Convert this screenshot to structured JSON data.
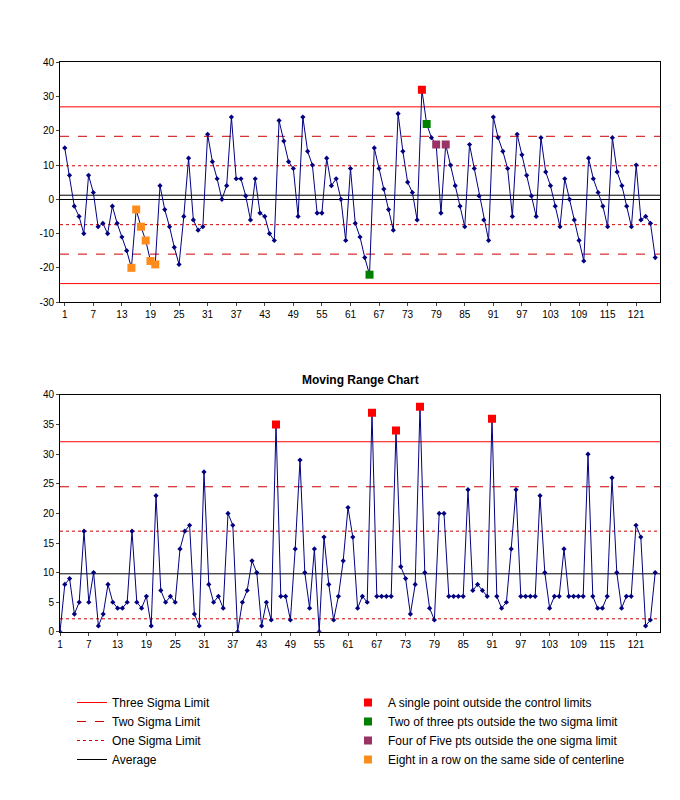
{
  "chart_data": [
    {
      "type": "line",
      "legend": "bottom",
      "grid": false,
      "xlim": [
        0,
        126
      ],
      "xticks": [
        1,
        7,
        13,
        19,
        25,
        31,
        37,
        43,
        49,
        55,
        61,
        67,
        73,
        79,
        85,
        91,
        97,
        103,
        109,
        115,
        121
      ],
      "ylim": [
        -30,
        40
      ],
      "yticks": [
        -30,
        -20,
        -10,
        0,
        10,
        20,
        30,
        40
      ],
      "reference_lines": [
        {
          "name": "Three Sigma Limit",
          "color": "#ff0000",
          "line_style": "solid",
          "values": [
            27.0,
            -24.6
          ]
        },
        {
          "name": "Two Sigma Limit",
          "color": "#cc0000",
          "line_style": "dashed",
          "values": [
            18.4,
            -16.0
          ]
        },
        {
          "name": "One Sigma Limit",
          "color": "#cc0000",
          "line_style": "dotted",
          "values": [
            9.8,
            -7.4
          ]
        },
        {
          "name": "Average",
          "color": "#000000",
          "line_style": "solid",
          "values": [
            1.2
          ]
        }
      ],
      "series": [
        {
          "type": "line",
          "color": "#000080",
          "marker": "diamond",
          "x": [
            1,
            2,
            3,
            4,
            5,
            6,
            7,
            8,
            9,
            10,
            11,
            12,
            13,
            14,
            15,
            16,
            17,
            18,
            19,
            20,
            21,
            22,
            23,
            24,
            25,
            26,
            27,
            28,
            29,
            30,
            31,
            32,
            33,
            34,
            35,
            36,
            37,
            38,
            39,
            40,
            41,
            42,
            43,
            44,
            45,
            46,
            47,
            48,
            49,
            50,
            51,
            52,
            53,
            54,
            55,
            56,
            57,
            58,
            59,
            60,
            61,
            62,
            63,
            64,
            65,
            66,
            67,
            68,
            69,
            70,
            71,
            72,
            73,
            74,
            75,
            76,
            77,
            78,
            79,
            80,
            81,
            82,
            83,
            84,
            85,
            86,
            87,
            88,
            89,
            90,
            91,
            92,
            93,
            94,
            95,
            96,
            97,
            98,
            99,
            100,
            101,
            102,
            103,
            104,
            105,
            106,
            107,
            108,
            109,
            110,
            111,
            112,
            113,
            114,
            115,
            116,
            117,
            118,
            119,
            120,
            121,
            122,
            123,
            124,
            125
          ],
          "values": [
            15,
            7,
            -2,
            -5,
            -10,
            7,
            2,
            -8,
            -7,
            -10,
            -2,
            -7,
            -11,
            -15,
            -20,
            -3,
            -8,
            -12,
            -18,
            -19,
            4,
            -3,
            -8,
            -14,
            -19,
            -5,
            12,
            -6,
            -9,
            -8,
            19,
            11,
            6,
            0,
            4,
            24,
            6,
            6,
            1,
            -6,
            6,
            -4,
            -5,
            -10,
            -12,
            23,
            17,
            11,
            9,
            -5,
            24,
            14,
            10,
            -4,
            -4,
            12,
            4,
            6,
            0,
            -12,
            9,
            -7,
            -11,
            -17,
            -22,
            15,
            9,
            3,
            -3,
            -9,
            25,
            14,
            5,
            2,
            -6,
            32,
            22,
            18,
            16,
            -4,
            16,
            10,
            4,
            -2,
            -8,
            16,
            9,
            1,
            -6,
            -12,
            24,
            18,
            14,
            9,
            -5,
            19,
            13,
            7,
            1,
            -5,
            18,
            8,
            4,
            -2,
            -8,
            6,
            0,
            -6,
            -12,
            -18,
            12,
            6,
            2,
            -2,
            -8,
            18,
            8,
            4,
            -2,
            -8,
            10,
            -6,
            -5,
            -7,
            -17
          ]
        },
        {
          "type": "scatter",
          "name": "A single point outside the control limits",
          "color": "#ff0000",
          "marker": "square",
          "x": [
            76
          ],
          "values": [
            32
          ]
        },
        {
          "type": "scatter",
          "name": "Two of three pts outside the two sigma limit",
          "color": "#008000",
          "marker": "square",
          "x": [
            65,
            77
          ],
          "values": [
            -22,
            22
          ]
        },
        {
          "type": "scatter",
          "name": "Four of Five pts outside the one sigma limit",
          "color": "#993366",
          "marker": "square",
          "x": [
            79,
            81
          ],
          "values": [
            16,
            16
          ]
        },
        {
          "type": "scatter",
          "name": "Eight in a row on the same side of centerline",
          "color": "#ff8c1a",
          "marker": "square",
          "x": [
            15,
            16,
            17,
            18,
            19,
            20
          ],
          "values": [
            -20,
            -3,
            -8,
            -12,
            -18,
            -19
          ]
        }
      ]
    },
    {
      "type": "line",
      "title": "Moving Range Chart",
      "grid": false,
      "xlim": [
        1,
        126
      ],
      "xticks": [
        1,
        7,
        13,
        19,
        25,
        31,
        37,
        43,
        49,
        55,
        61,
        67,
        73,
        79,
        85,
        91,
        97,
        103,
        109,
        115,
        121
      ],
      "ylim": [
        0,
        40
      ],
      "yticks": [
        0,
        5,
        10,
        15,
        20,
        25,
        30,
        35,
        40
      ],
      "reference_lines": [
        {
          "name": "Three Sigma Limit",
          "color": "#ff0000",
          "line_style": "solid",
          "values": [
            32.1
          ]
        },
        {
          "name": "Two Sigma Limit",
          "color": "#cc0000",
          "line_style": "dashed",
          "values": [
            24.5
          ]
        },
        {
          "name": "One Sigma Limit",
          "color": "#cc0000",
          "line_style": "dotted",
          "values": [
            17.0,
            2.2
          ]
        },
        {
          "name": "Average",
          "color": "#000000",
          "line_style": "solid",
          "values": [
            9.8
          ]
        }
      ],
      "series": [
        {
          "type": "line",
          "color": "#000080",
          "marker": "diamond",
          "x": [
            1,
            2,
            3,
            4,
            5,
            6,
            7,
            8,
            9,
            10,
            11,
            12,
            13,
            14,
            15,
            16,
            17,
            18,
            19,
            20,
            21,
            22,
            23,
            24,
            25,
            26,
            27,
            28,
            29,
            30,
            31,
            32,
            33,
            34,
            35,
            36,
            37,
            38,
            39,
            40,
            41,
            42,
            43,
            44,
            45,
            46,
            47,
            48,
            49,
            50,
            51,
            52,
            53,
            54,
            55,
            56,
            57,
            58,
            59,
            60,
            61,
            62,
            63,
            64,
            65,
            66,
            67,
            68,
            69,
            70,
            71,
            72,
            73,
            74,
            75,
            76,
            77,
            78,
            79,
            80,
            81,
            82,
            83,
            84,
            85,
            86,
            87,
            88,
            89,
            90,
            91,
            92,
            93,
            94,
            95,
            96,
            97,
            98,
            99,
            100,
            101,
            102,
            103,
            104,
            105,
            106,
            107,
            108,
            109,
            110,
            111,
            112,
            113,
            114,
            115,
            116,
            117,
            118,
            119,
            120,
            121,
            122,
            123,
            124,
            125
          ],
          "values": [
            0,
            8,
            9,
            3,
            5,
            17,
            5,
            10,
            1,
            3,
            8,
            5,
            4,
            4,
            5,
            17,
            5,
            4,
            6,
            1,
            23,
            7,
            5,
            6,
            5,
            14,
            17,
            18,
            3,
            1,
            27,
            8,
            5,
            6,
            4,
            20,
            18,
            0,
            5,
            7,
            12,
            10,
            1,
            5,
            2,
            35,
            6,
            6,
            2,
            14,
            29,
            10,
            4,
            14,
            0,
            16,
            8,
            2,
            6,
            12,
            21,
            16,
            4,
            6,
            5,
            37,
            6,
            6,
            6,
            6,
            34,
            11,
            9,
            3,
            8,
            38,
            10,
            4,
            2,
            20,
            20,
            6,
            6,
            6,
            6,
            24,
            7,
            8,
            7,
            6,
            36,
            6,
            4,
            5,
            14,
            24,
            6,
            6,
            6,
            6,
            23,
            10,
            4,
            6,
            6,
            14,
            6,
            6,
            6,
            6,
            30,
            6,
            4,
            4,
            6,
            26,
            10,
            4,
            6,
            6,
            18,
            16,
            1,
            2,
            10
          ]
        },
        {
          "type": "scatter",
          "name": "A single point outside the control limits",
          "color": "#ff0000",
          "marker": "square",
          "x": [
            46,
            66,
            71,
            76,
            91
          ],
          "values": [
            35,
            37,
            34,
            38,
            36
          ]
        }
      ]
    }
  ]
}
